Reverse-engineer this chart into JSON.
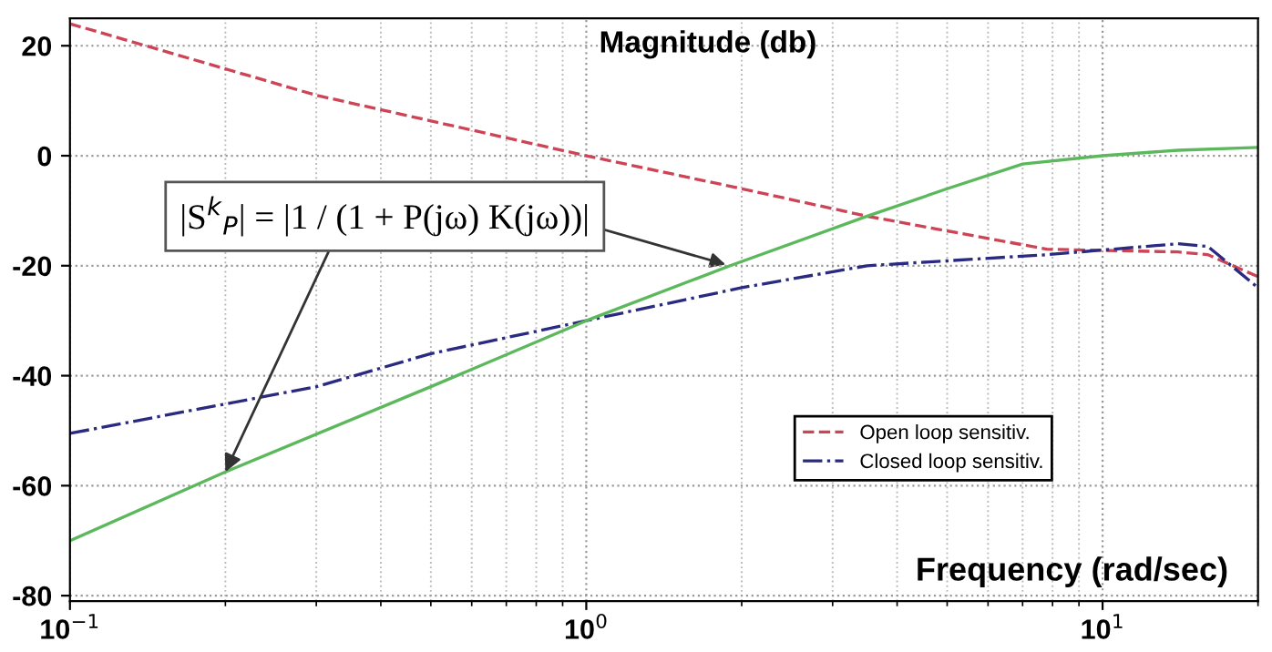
{
  "chart_data": {
    "type": "line",
    "title": "Magnitude (db)",
    "xlabel": "Frequency (rad/sec)",
    "log": "x",
    "grid": true,
    "legend": "bottom right",
    "xlim": [
      0.1,
      20
    ],
    "xticks": [
      {
        "value": 0.1,
        "label": "10$^{−1}$"
      },
      {
        "value": 1,
        "label": "10$^{0}$"
      },
      {
        "value": 10,
        "label": "10$^{1}$"
      }
    ],
    "ylim": [
      -81,
      25
    ],
    "yticks": [
      -80,
      -60,
      -40,
      -20,
      0,
      20
    ],
    "series": [
      {
        "name": "Open loop sensitiv.",
        "color": "#cc4455",
        "line_style": "dashed",
        "x": [
          0.1,
          0.3,
          1,
          2,
          3.5,
          7.8,
          14,
          16,
          20
        ],
        "values": [
          24,
          11,
          0,
          -6,
          -11,
          -17,
          -17.5,
          -18,
          -22
        ]
      },
      {
        "name": "Closed loop sensitiv.",
        "color": "#2a2a80",
        "line_style": "dashdot",
        "x": [
          0.1,
          0.3,
          0.5,
          1,
          2,
          3.5,
          7.8,
          14,
          16,
          20
        ],
        "values": [
          -50.5,
          -42,
          -36,
          -30,
          -24,
          -20,
          -18,
          -16,
          -16.5,
          -24
        ]
      },
      {
        "color": "#5cb85c",
        "line_style": "solid",
        "x": [
          0.1,
          0.2,
          0.5,
          1,
          1.9,
          3.5,
          5,
          7,
          10,
          14,
          20
        ],
        "values": [
          -70,
          -57.5,
          -42,
          -30,
          -20,
          -11,
          -6,
          -1.5,
          0,
          1,
          1.5
        ]
      }
    ],
    "annotations": [
      {
        "text": "|S$^{k}$$_{P}$| = |1 / (1 + P(jω) K(jω))|",
        "x": 0.2,
        "y": -57.5
      }
    ]
  }
}
